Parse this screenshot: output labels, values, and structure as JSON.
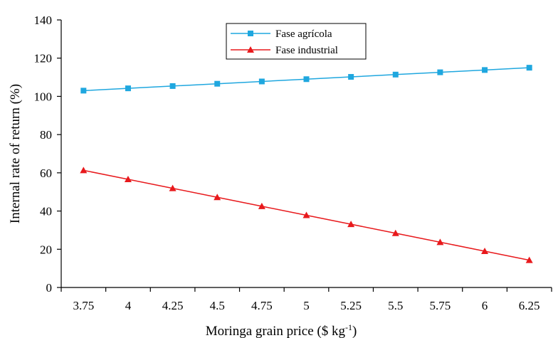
{
  "chart_data": {
    "type": "line",
    "categories": [
      "3.75",
      "4",
      "4.25",
      "4.5",
      "4.75",
      "5",
      "5.25",
      "5.5",
      "5.75",
      "6",
      "6.25"
    ],
    "series": [
      {
        "name": "Fase agrícola",
        "color": "#1fa7df",
        "marker": "square",
        "values": [
          103,
          104.2,
          105.4,
          106.6,
          107.8,
          109,
          110.2,
          111.4,
          112.6,
          113.8,
          115
        ]
      },
      {
        "name": "Fase industrial",
        "color": "#e8191c",
        "marker": "triangle",
        "values": [
          61.3,
          56.6,
          51.9,
          47.2,
          42.5,
          37.8,
          33.1,
          28.4,
          23.7,
          19.0,
          14.3
        ]
      }
    ],
    "xlabel": "Moringa grain price ($ kg",
    "xlabel_sup": "-1",
    "xlabel_end": ")",
    "ylabel": "Internal rate of return (%)",
    "ylim": [
      0,
      140
    ],
    "yticks": [
      "0",
      "20",
      "40",
      "60",
      "80",
      "100",
      "120",
      "140"
    ],
    "legend_position": "top-center"
  }
}
